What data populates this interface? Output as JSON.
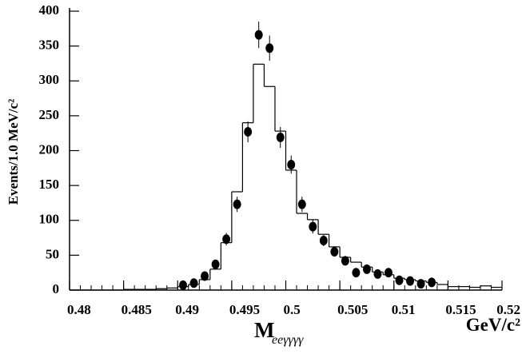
{
  "chart_data": {
    "type": "histogram",
    "y_label": "Events/1.0 MeV/c²",
    "x_label": "M",
    "x_label_subscript": "eeγγγγ",
    "x_unit": "GeV/c²",
    "color": "#000000",
    "bins": [
      0.48,
      0.481,
      0.482,
      0.483,
      0.484,
      0.485,
      0.486,
      0.487,
      0.488,
      0.489,
      0.49,
      0.491,
      0.492,
      0.493,
      0.494,
      0.495,
      0.496,
      0.497,
      0.498,
      0.499,
      0.5,
      0.501,
      0.502,
      0.503,
      0.504,
      0.505,
      0.506,
      0.507,
      0.508,
      0.509,
      0.51,
      0.511,
      0.512,
      0.513,
      0.514,
      0.515,
      0.516,
      0.517,
      0.518,
      0.519,
      0.52
    ],
    "counts": [
      0,
      0,
      0,
      0,
      0,
      1,
      1,
      1,
      2,
      3,
      5,
      8,
      15,
      30,
      68,
      141,
      240,
      324,
      292,
      228,
      172,
      110,
      101,
      80,
      62,
      47,
      40,
      33,
      26,
      22,
      17,
      15,
      13,
      11,
      8,
      5,
      5,
      4,
      6,
      4
    ],
    "points": {
      "color": "#000000",
      "x": [
        0.4905,
        0.4915,
        0.4925,
        0.4935,
        0.4945,
        0.4955,
        0.4965,
        0.4975,
        0.4985,
        0.4995,
        0.5005,
        0.5015,
        0.5025,
        0.5035,
        0.5045,
        0.5055,
        0.5065,
        0.5075,
        0.5085,
        0.5095,
        0.5105,
        0.5115,
        0.5125,
        0.5135
      ],
      "values": [
        7,
        10,
        20,
        37,
        73,
        123,
        227,
        366,
        347,
        219,
        180,
        123,
        91,
        71,
        55,
        42,
        25,
        30,
        23,
        25,
        14,
        13,
        9,
        11
      ],
      "errors": [
        3,
        3,
        4,
        6,
        9,
        11,
        15,
        19,
        18,
        15,
        13,
        11,
        10,
        8,
        7,
        6,
        5,
        5,
        5,
        5,
        4,
        4,
        3,
        3
      ]
    },
    "xlim": [
      0.48,
      0.52
    ],
    "xticks": [
      0.48,
      0.485,
      0.49,
      0.495,
      0.5,
      0.505,
      0.51,
      0.515,
      0.52
    ],
    "ylim": [
      0,
      400
    ],
    "yticks": [
      0,
      50,
      100,
      150,
      200,
      250,
      300,
      350,
      400
    ]
  }
}
